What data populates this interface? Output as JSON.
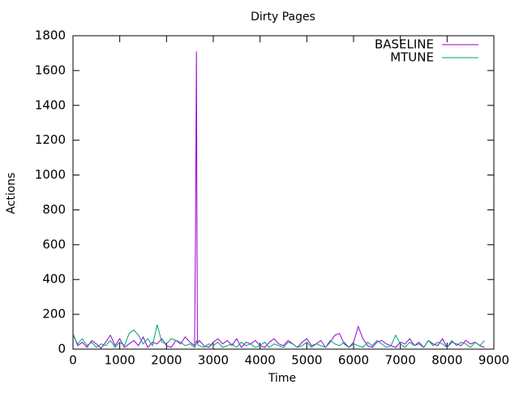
{
  "chart_data": {
    "type": "line",
    "title": "Dirty Pages",
    "x_label": "Time",
    "y_label": "Actions",
    "x": [
      0,
      100,
      200,
      300,
      400,
      500,
      600,
      700,
      800,
      900,
      1000,
      1100,
      1200,
      1300,
      1400,
      1500,
      1600,
      1700,
      1800,
      1900,
      2000,
      2100,
      2200,
      2300,
      2400,
      2500,
      2600,
      2620,
      2640,
      2660,
      2700,
      2800,
      2900,
      3000,
      3100,
      3200,
      3300,
      3400,
      3500,
      3600,
      3700,
      3800,
      3900,
      4000,
      4100,
      4200,
      4300,
      4400,
      4500,
      4600,
      4700,
      4800,
      4900,
      5000,
      5100,
      5200,
      5300,
      5400,
      5500,
      5600,
      5700,
      5800,
      5900,
      6000,
      6100,
      6200,
      6300,
      6400,
      6500,
      6600,
      6700,
      6800,
      6900,
      7000,
      7100,
      7200,
      7300,
      7400,
      7500,
      7600,
      7700,
      7800,
      7900,
      8000,
      8100,
      8200,
      8300,
      8400,
      8500,
      8600,
      8700,
      8800
    ],
    "series": [
      {
        "name": "BASELINE",
        "color": "#9400d3",
        "values": [
          90,
          20,
          40,
          10,
          50,
          30,
          5,
          40,
          80,
          20,
          60,
          10,
          30,
          50,
          20,
          70,
          10,
          40,
          30,
          60,
          20,
          10,
          50,
          30,
          70,
          40,
          20,
          640,
          1710,
          30,
          50,
          20,
          10,
          40,
          60,
          30,
          50,
          20,
          60,
          10,
          40,
          30,
          50,
          20,
          10,
          40,
          60,
          30,
          20,
          50,
          30,
          10,
          40,
          60,
          20,
          30,
          50,
          10,
          40,
          80,
          90,
          30,
          10,
          40,
          130,
          60,
          20,
          10,
          40,
          50,
          30,
          20,
          10,
          40,
          30,
          60,
          20,
          40,
          10,
          50,
          30,
          20,
          60,
          10,
          40,
          30,
          20,
          50,
          30,
          40,
          20,
          10
        ]
      },
      {
        "name": "MTUNE",
        "color": "#009e73",
        "values": [
          80,
          30,
          60,
          20,
          40,
          10,
          30,
          20,
          50,
          10,
          40,
          20,
          90,
          110,
          80,
          30,
          60,
          20,
          140,
          40,
          30,
          60,
          50,
          40,
          20,
          30,
          10,
          20,
          50,
          30,
          20,
          10,
          30,
          20,
          40,
          10,
          20,
          30,
          10,
          40,
          20,
          30,
          10,
          20,
          40,
          10,
          30,
          20,
          10,
          40,
          30,
          10,
          20,
          40,
          10,
          30,
          20,
          10,
          50,
          30,
          20,
          40,
          10,
          30,
          20,
          10,
          40,
          20,
          50,
          30,
          10,
          20,
          80,
          30,
          10,
          40,
          20,
          30,
          10,
          50,
          20,
          40,
          30,
          10,
          50,
          20,
          40,
          30,
          10,
          40,
          20,
          50
        ]
      }
    ],
    "xlim": [
      0,
      9000
    ],
    "xticks": [
      0,
      1000,
      2000,
      3000,
      4000,
      5000,
      6000,
      7000,
      8000,
      9000
    ],
    "ylim": [
      0,
      1800
    ],
    "yticks": [
      0,
      200,
      400,
      600,
      800,
      1000,
      1200,
      1400,
      1600,
      1800
    ],
    "legend": "top-right"
  }
}
